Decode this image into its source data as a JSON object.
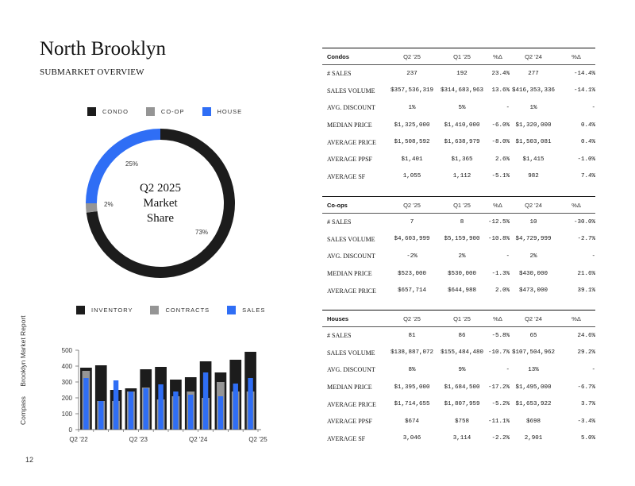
{
  "header": {
    "title": "North Brooklyn",
    "subtitle": "SUBMARKET OVERVIEW"
  },
  "sidebar_text": {
    "brand": "Compass",
    "report": "Brooklyn Market Report"
  },
  "page_number": "12",
  "colors": {
    "condo": "#1c1c1c",
    "coop": "#959595",
    "house": "#2f6ef5",
    "inventory": "#1c1c1c",
    "contracts": "#959595",
    "sales": "#2f6ef5"
  },
  "chart_data": [
    {
      "type": "pie",
      "title": "Q2 2025\nMarket\nShare",
      "title_lines": [
        "Q2 2025",
        "Market",
        "Share"
      ],
      "legend": [
        "CONDO",
        "CO-OP",
        "HOUSE"
      ],
      "legend_position": "top",
      "slices": [
        {
          "name": "CONDO",
          "value": 73,
          "label": "73%"
        },
        {
          "name": "CO-OP",
          "value": 2,
          "label": "2%"
        },
        {
          "name": "HOUSE",
          "value": 25,
          "label": "25%"
        }
      ]
    },
    {
      "type": "bar",
      "legend": [
        "INVENTORY",
        "CONTRACTS",
        "SALES"
      ],
      "legend_position": "top",
      "ylim": [
        0,
        500
      ],
      "yticks": [
        0,
        100,
        200,
        300,
        400,
        500
      ],
      "tick_labels": [
        "Q2 '22",
        "Q2 '23",
        "Q2 '24",
        "Q2 '25"
      ],
      "tick_indices": [
        0,
        4,
        8,
        12
      ],
      "grid": false,
      "series": [
        {
          "name": "INVENTORY",
          "values": [
            390,
            405,
            250,
            260,
            380,
            395,
            315,
            330,
            430,
            360,
            440,
            490
          ]
        },
        {
          "name": "CONTRACTS",
          "values": [
            370,
            180,
            180,
            240,
            265,
            190,
            210,
            240,
            200,
            300,
            240,
            240
          ]
        },
        {
          "name": "SALES",
          "values": [
            325,
            180,
            310,
            240,
            260,
            285,
            240,
            220,
            360,
            210,
            290,
            325
          ]
        }
      ]
    }
  ],
  "tables": [
    {
      "name": "Condos",
      "columns": [
        "Q2 '25",
        "Q1 '25",
        "%Δ",
        "Q2 '24",
        "%Δ"
      ],
      "rows": [
        [
          "# SALES",
          "237",
          "192",
          "23.4%",
          "277",
          "-14.4%"
        ],
        [
          "SALES VOLUME",
          "$357,536,319",
          "$314,683,963",
          "13.6%",
          "$416,353,336",
          "-14.1%"
        ],
        [
          "AVG. DISCOUNT",
          "1%",
          "5%",
          "-",
          "1%",
          "-"
        ],
        [
          "MEDIAN PRICE",
          "$1,325,000",
          "$1,410,000",
          "-6.0%",
          "$1,320,000",
          "0.4%"
        ],
        [
          "AVERAGE PRICE",
          "$1,508,592",
          "$1,638,979",
          "-8.0%",
          "$1,503,081",
          "0.4%"
        ],
        [
          "AVERAGE PPSF",
          "$1,401",
          "$1,365",
          "2.6%",
          "$1,415",
          "-1.0%"
        ],
        [
          "AVERAGE SF",
          "1,055",
          "1,112",
          "-5.1%",
          "982",
          "7.4%"
        ]
      ]
    },
    {
      "name": "Co-ops",
      "columns": [
        "Q2 '25",
        "Q1 '25",
        "%Δ",
        "Q2 '24",
        "%Δ"
      ],
      "rows": [
        [
          "# SALES",
          "7",
          "8",
          "-12.5%",
          "10",
          "-30.0%"
        ],
        [
          "SALES VOLUME",
          "$4,603,999",
          "$5,159,900",
          "-10.8%",
          "$4,729,999",
          "-2.7%"
        ],
        [
          "AVG. DISCOUNT",
          "-2%",
          "2%",
          "-",
          "2%",
          "-"
        ],
        [
          "MEDIAN PRICE",
          "$523,000",
          "$530,000",
          "-1.3%",
          "$430,000",
          "21.6%"
        ],
        [
          "AVERAGE PRICE",
          "$657,714",
          "$644,988",
          "2.0%",
          "$473,000",
          "39.1%"
        ]
      ]
    },
    {
      "name": "Houses",
      "columns": [
        "Q2 '25",
        "Q1 '25",
        "%Δ",
        "Q2 '24",
        "%Δ"
      ],
      "rows": [
        [
          "# SALES",
          "81",
          "86",
          "-5.8%",
          "65",
          "24.6%"
        ],
        [
          "SALES VOLUME",
          "$138,887,072",
          "$155,484,480",
          "-10.7%",
          "$107,504,962",
          "29.2%"
        ],
        [
          "AVG. DISCOUNT",
          "8%",
          "9%",
          "-",
          "13%",
          "-"
        ],
        [
          "MEDIAN PRICE",
          "$1,395,000",
          "$1,684,500",
          "-17.2%",
          "$1,495,000",
          "-6.7%"
        ],
        [
          "AVERAGE PRICE",
          "$1,714,655",
          "$1,807,959",
          "-5.2%",
          "$1,653,922",
          "3.7%"
        ],
        [
          "AVERAGE PPSF",
          "$674",
          "$758",
          "-11.1%",
          "$698",
          "-3.4%"
        ],
        [
          "AVERAGE SF",
          "3,046",
          "3,114",
          "-2.2%",
          "2,901",
          "5.0%"
        ]
      ]
    }
  ]
}
